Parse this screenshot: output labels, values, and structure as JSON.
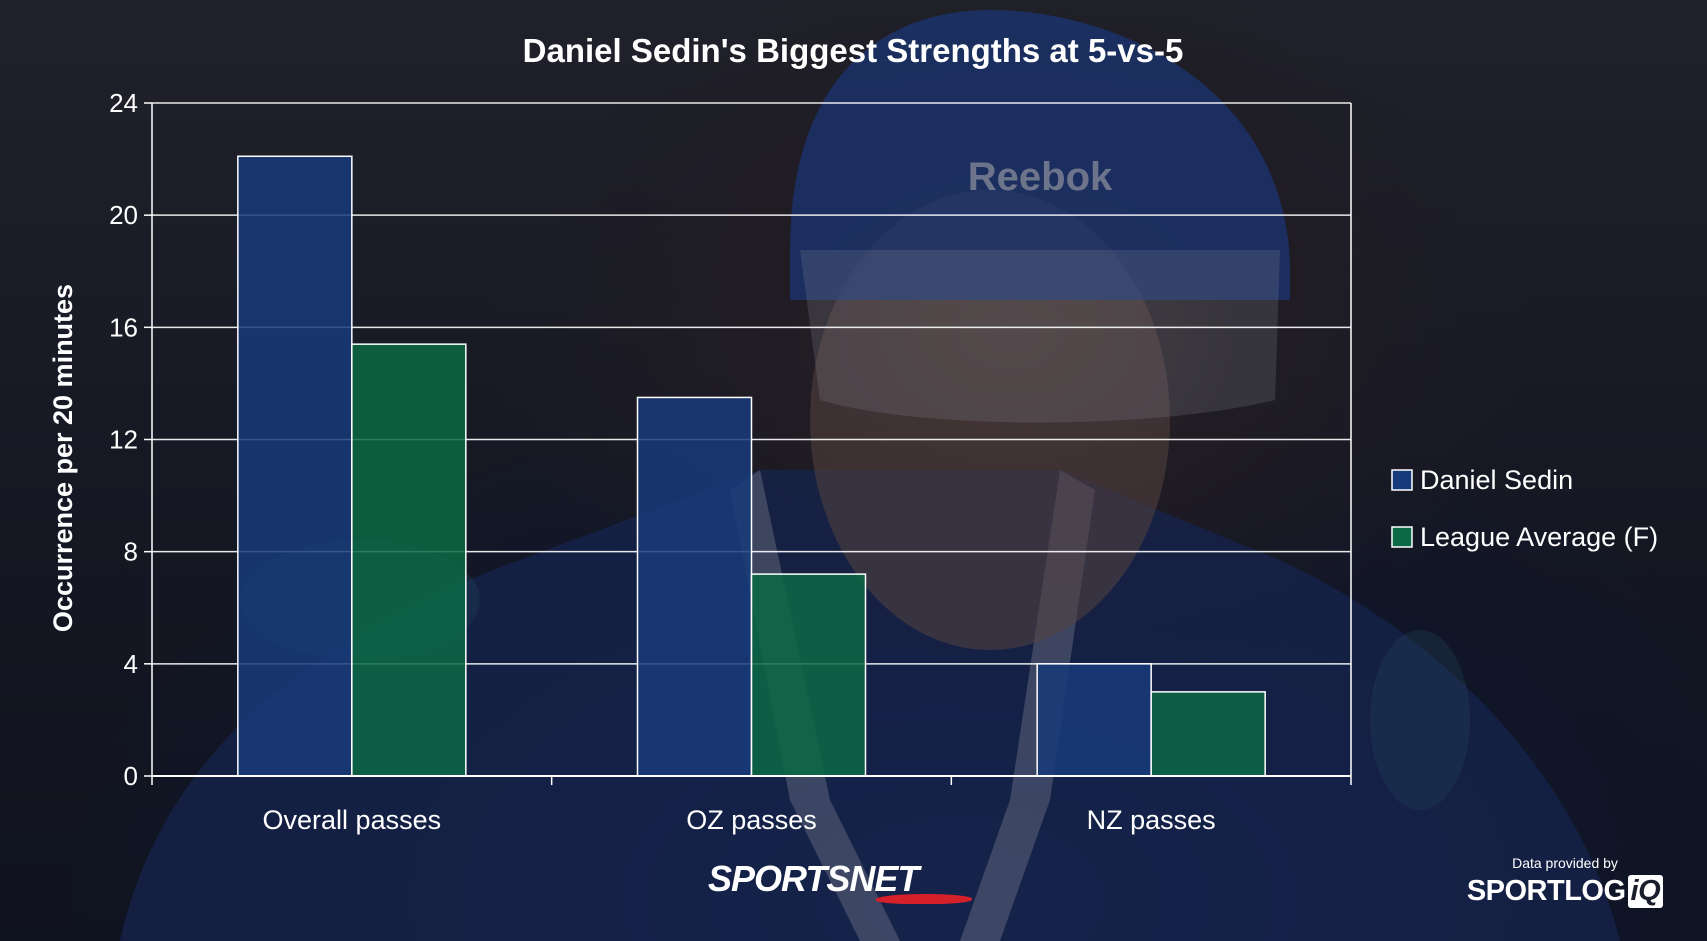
{
  "chart_data": {
    "type": "bar",
    "title": "Daniel Sedin's Biggest Strengths at 5-vs-5",
    "xlabel": "",
    "ylabel": "Occurrence per 20 minutes",
    "categories": [
      "Overall passes",
      "OZ passes",
      "NZ passes"
    ],
    "series": [
      {
        "name": "Daniel Sedin",
        "values": [
          22.1,
          13.5,
          4.0
        ],
        "color": "#173b7a"
      },
      {
        "name": "League Average (F)",
        "values": [
          15.4,
          7.2,
          3.0
        ],
        "color": "#0b6a45"
      }
    ],
    "ylim": [
      0,
      24
    ],
    "yticks": [
      0,
      4,
      8,
      12,
      16,
      20,
      24
    ],
    "grid": true,
    "legend_position": "right"
  },
  "branding": {
    "sportsnet_logo_text": "SPORTSNET",
    "data_credit_label": "Data provided by",
    "sportlogiq_text": "SPORTLOG",
    "sportlogiq_iq": "iQ"
  },
  "colors": {
    "background_dark": "#10141f",
    "gridline": "#ffffff",
    "text": "#ffffff"
  },
  "icons": {
    "background_photo": "hockey-player-photo-icon"
  }
}
